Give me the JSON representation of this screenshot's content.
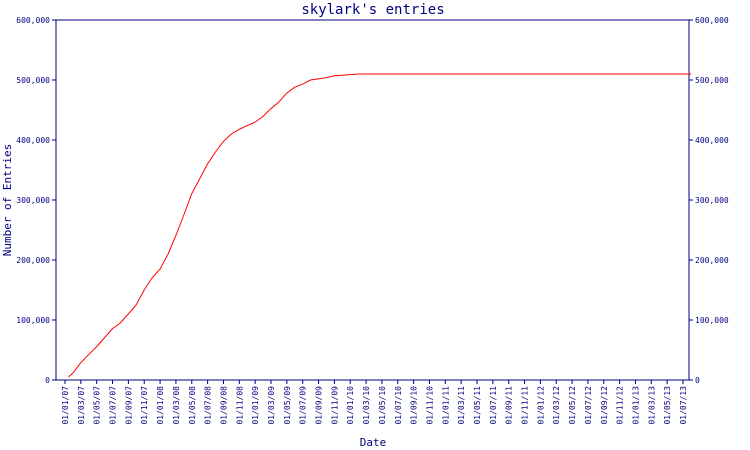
{
  "chart_data": {
    "type": "line",
    "title": "skylark's entries",
    "xlabel": "Date",
    "ylabel": "Number of Entries",
    "ylim": [
      0,
      600000
    ],
    "y_ticks": [
      "0",
      "100,000",
      "200,000",
      "300,000",
      "400,000",
      "500,000",
      "600,000"
    ],
    "y_tick_values": [
      0,
      100000,
      200000,
      300000,
      400000,
      500000,
      600000
    ],
    "x_ticks": [
      "01/01/07",
      "01/03/07",
      "01/05/07",
      "01/07/07",
      "01/09/07",
      "01/11/07",
      "01/01/08",
      "01/03/08",
      "01/05/08",
      "01/07/08",
      "01/09/08",
      "01/11/08",
      "01/01/09",
      "01/03/09",
      "01/05/09",
      "01/07/09",
      "01/09/09",
      "01/11/09",
      "01/01/10",
      "01/03/10",
      "01/05/10",
      "01/07/10",
      "01/09/10",
      "01/11/10",
      "01/01/11",
      "01/03/11",
      "01/05/11",
      "01/07/11",
      "01/09/11",
      "01/11/11",
      "01/01/12",
      "01/03/12",
      "01/05/12",
      "01/07/12",
      "01/09/12",
      "01/11/12",
      "01/01/13",
      "01/03/13",
      "01/05/13",
      "01/07/13"
    ],
    "grid": false,
    "colors": {
      "axis": "#00007f",
      "line": "#ff0000",
      "background": "#ffffff"
    },
    "series": [
      {
        "name": "",
        "x": [
          "2007-01-15",
          "2007-02-01",
          "2007-03-01",
          "2007-04-01",
          "2007-05-01",
          "2007-06-01",
          "2007-07-01",
          "2007-08-01",
          "2007-09-01",
          "2007-10-01",
          "2007-11-01",
          "2007-12-01",
          "2008-01-01",
          "2008-02-01",
          "2008-03-01",
          "2008-04-01",
          "2008-05-01",
          "2008-06-01",
          "2008-07-01",
          "2008-08-01",
          "2008-09-01",
          "2008-10-01",
          "2008-11-01",
          "2008-12-01",
          "2009-01-01",
          "2009-02-01",
          "2009-03-01",
          "2009-04-01",
          "2009-05-01",
          "2009-06-01",
          "2009-07-01",
          "2009-08-01",
          "2009-09-01",
          "2009-10-01",
          "2009-11-01",
          "2009-12-01",
          "2010-01-01",
          "2010-02-01",
          "2010-03-01",
          "2010-07-01",
          "2011-01-01",
          "2011-07-01",
          "2012-01-01",
          "2012-07-01",
          "2013-01-01",
          "2013-07-01",
          "2013-08-01"
        ],
        "y": [
          5000,
          12000,
          28000,
          42000,
          55000,
          70000,
          85000,
          95000,
          110000,
          125000,
          150000,
          170000,
          185000,
          210000,
          240000,
          275000,
          310000,
          335000,
          360000,
          380000,
          398000,
          410000,
          418000,
          424000,
          430000,
          440000,
          452000,
          463000,
          478000,
          488000,
          493000,
          500000,
          502000,
          504000,
          507000,
          508000,
          509000,
          510000,
          510000,
          510000,
          510000,
          510000,
          510000,
          510000,
          510000,
          510000,
          510000
        ]
      }
    ]
  }
}
